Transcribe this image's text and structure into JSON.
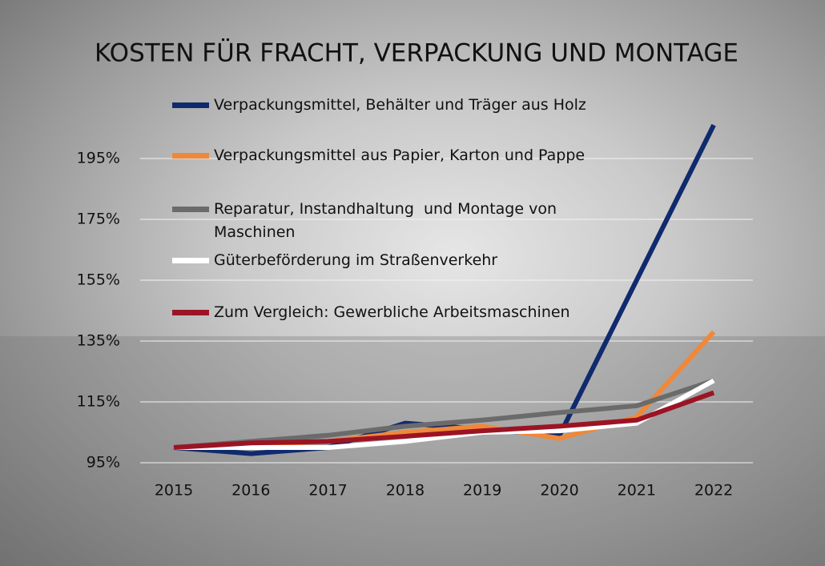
{
  "chart_data": {
    "type": "line",
    "title": "KOSTEN FÜR FRACHT, VERPACKUNG UND MONTAGE",
    "categories": [
      "2015",
      "2016",
      "2017",
      "2018",
      "2019",
      "2020",
      "2021",
      "2022"
    ],
    "series": [
      {
        "name": "Verpackungsmittel, Behälter und Träger aus Holz",
        "color": "#102a6e",
        "values": [
          100,
          98,
          100,
          108,
          106,
          104,
          155,
          206
        ]
      },
      {
        "name": "Verpackungsmittel aus Papier, Karton und Pappe",
        "color": "#f0883a",
        "values": [
          100,
          101,
          102,
          105,
          107,
          103,
          110,
          138
        ]
      },
      {
        "name": "Reparatur, Instandhaltung  und Montage von Maschinen",
        "color": "#6b6b6b",
        "values": [
          100,
          102,
          104,
          107,
          109,
          111.5,
          113.7,
          122
        ]
      },
      {
        "name": "Güterbeförderung im Straßenverkehr",
        "color": "#ffffff",
        "values": [
          100,
          100,
          100,
          102,
          105,
          105.5,
          108,
          122
        ]
      },
      {
        "name": "Zum Vergleich: Gewerbliche Arbeitsmaschinen",
        "color": "#9b1424",
        "values": [
          100,
          101.5,
          102,
          103.7,
          105.5,
          107,
          109,
          118
        ]
      }
    ],
    "ylim": [
      95,
      210
    ],
    "yticks": [
      {
        "value": 95,
        "label": "95%"
      },
      {
        "value": 115,
        "label": "115%"
      },
      {
        "value": 135,
        "label": "135%"
      },
      {
        "value": 155,
        "label": "155%"
      },
      {
        "value": 175,
        "label": "175%"
      },
      {
        "value": 195,
        "label": "195%"
      }
    ],
    "grid": true
  }
}
